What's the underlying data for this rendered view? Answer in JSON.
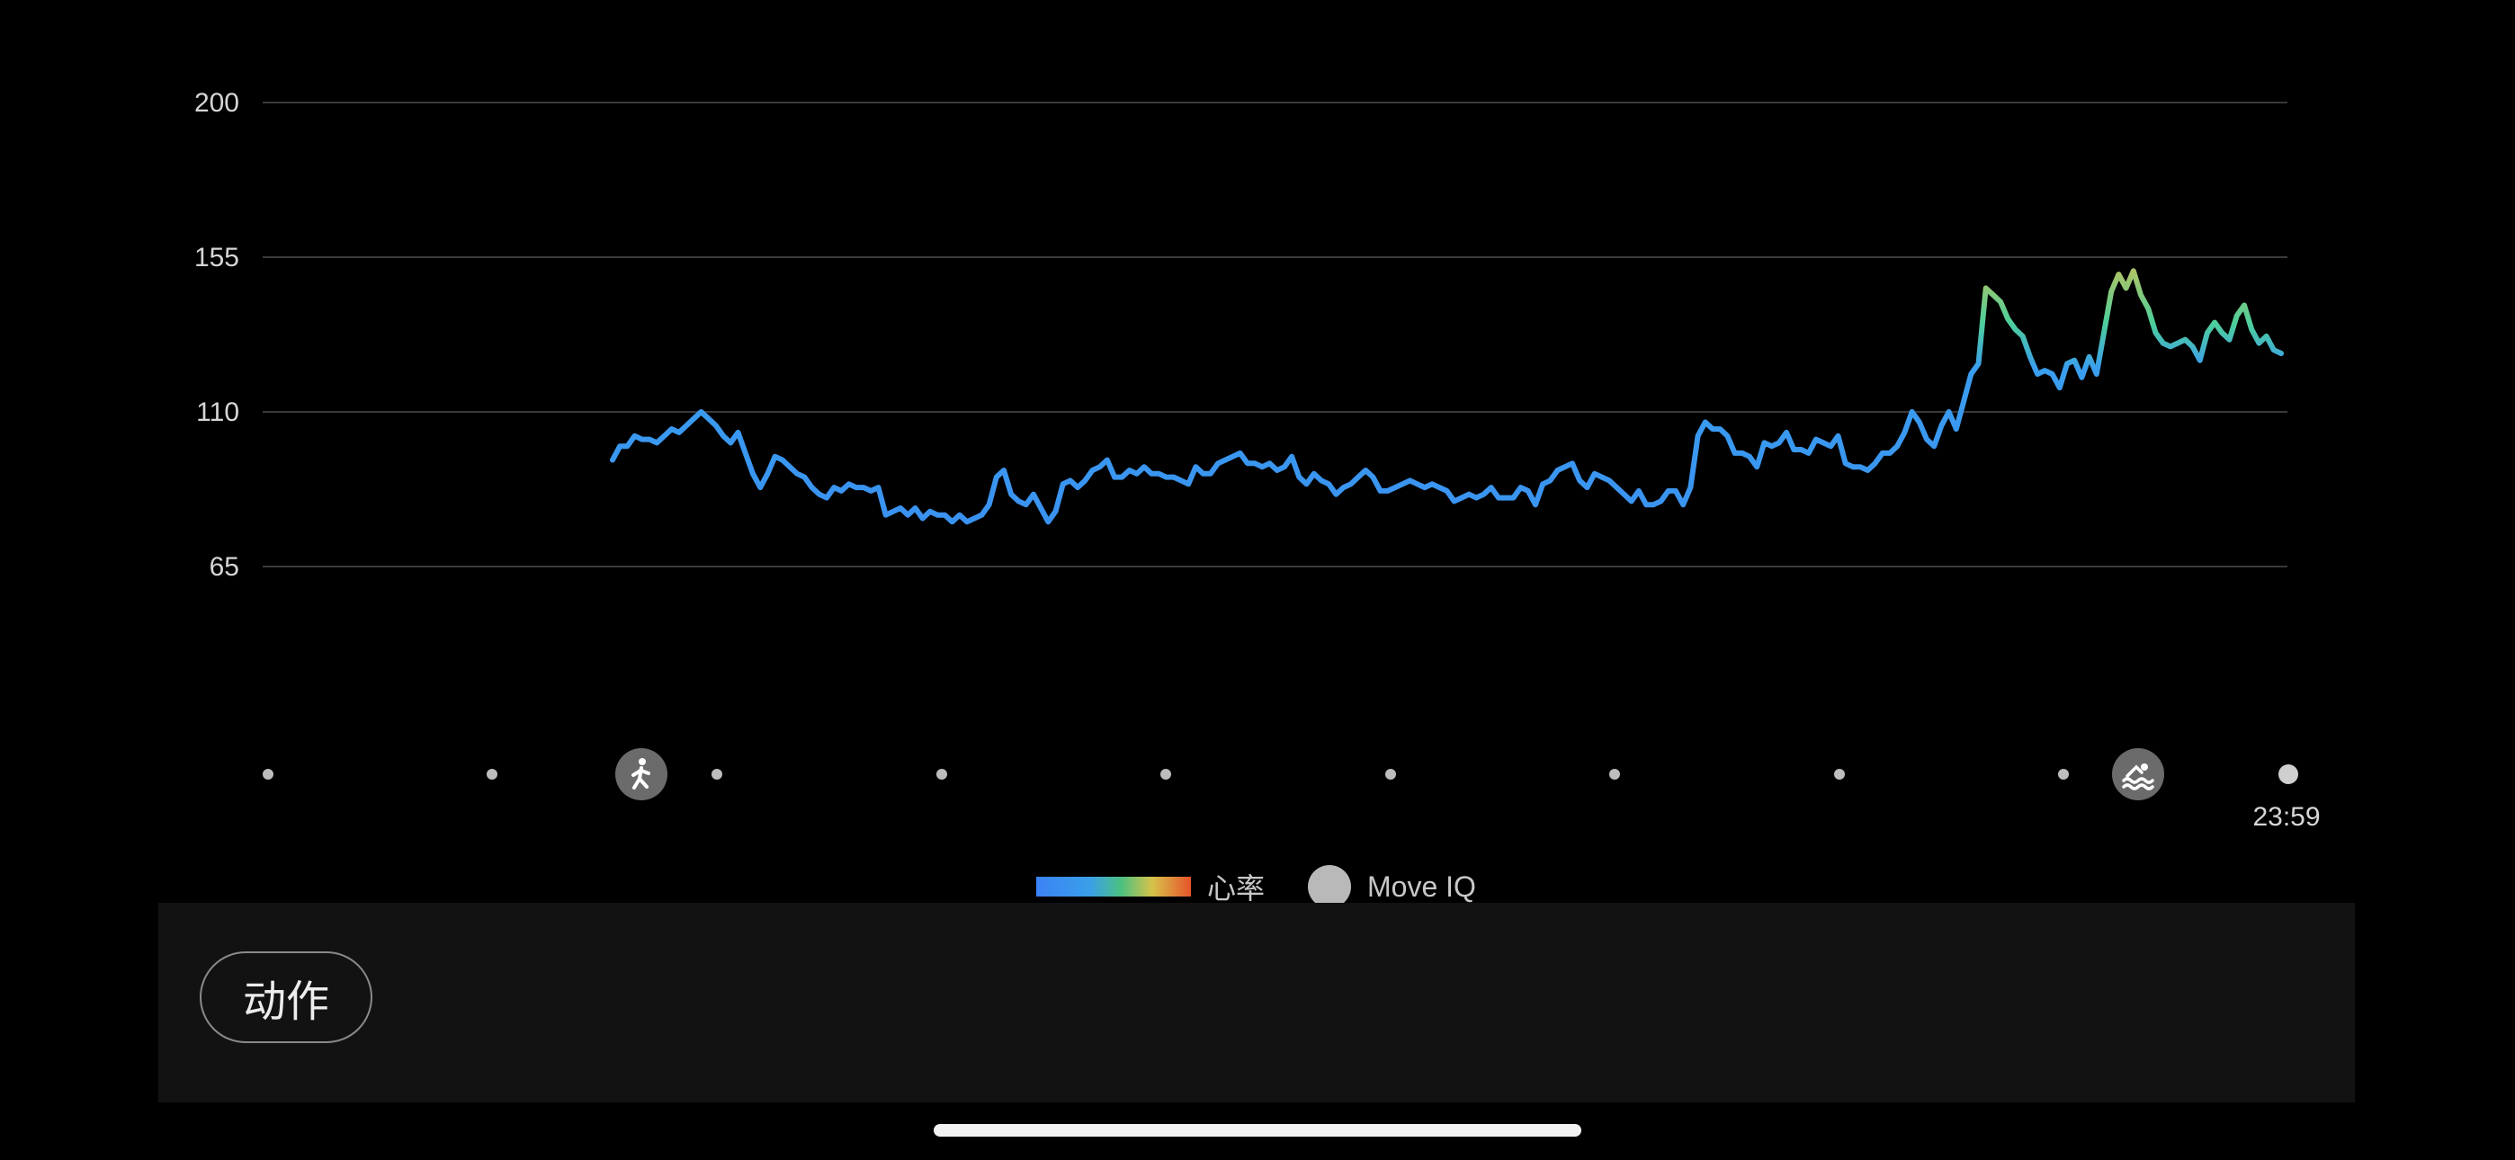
{
  "chart_data": {
    "type": "line",
    "series_label": "心率",
    "y_ticks": [
      200,
      155,
      110,
      65
    ],
    "ylim": [
      65,
      200
    ],
    "grid": true,
    "x_end_label": "23:59",
    "values": [
      96,
      100,
      100,
      103,
      102,
      102,
      101,
      103,
      105,
      104,
      106,
      108,
      110,
      108,
      106,
      103,
      101,
      104,
      98,
      92,
      88,
      92,
      97,
      96,
      94,
      92,
      91,
      88,
      86,
      85,
      88,
      87,
      89,
      88,
      88,
      87,
      88,
      80,
      81,
      82,
      80,
      82,
      79,
      81,
      80,
      80,
      78,
      80,
      78,
      79,
      80,
      83,
      91,
      93,
      86,
      84,
      83,
      86,
      82,
      78,
      81,
      89,
      90,
      88,
      90,
      93,
      94,
      96,
      91,
      91,
      93,
      92,
      94,
      92,
      92,
      91,
      91,
      90,
      89,
      94,
      92,
      92,
      95,
      96,
      97,
      98,
      95,
      95,
      94,
      95,
      93,
      94,
      97,
      91,
      89,
      92,
      90,
      89,
      86,
      88,
      89,
      91,
      93,
      91,
      87,
      87,
      88,
      89,
      90,
      89,
      88,
      89,
      88,
      87,
      84,
      85,
      86,
      85,
      86,
      88,
      85,
      85,
      85,
      88,
      87,
      83,
      89,
      90,
      93,
      94,
      95,
      90,
      88,
      92,
      91,
      90,
      88,
      86,
      84,
      87,
      83,
      83,
      84,
      87,
      87,
      83,
      88,
      103,
      107,
      105,
      105,
      103,
      98,
      98,
      97,
      94,
      101,
      100,
      101,
      104,
      99,
      99,
      98,
      102,
      101,
      100,
      103,
      95,
      94,
      94,
      93,
      95,
      98,
      98,
      100,
      104,
      110,
      107,
      102,
      100,
      106,
      110,
      105,
      113,
      121,
      124,
      146,
      144,
      142,
      137,
      134,
      132,
      126,
      121,
      122,
      121,
      117,
      124,
      125,
      120,
      126,
      121,
      133,
      145,
      150,
      146,
      151,
      144,
      140,
      133,
      130,
      129,
      130,
      131,
      129,
      125,
      133,
      136,
      133,
      131,
      138,
      141,
      134,
      130,
      132,
      128,
      127
    ],
    "series": [
      {
        "values_ref": "values"
      }
    ],
    "activity_markers": [
      "walk-icon",
      "swim-icon"
    ],
    "colors": {
      "low": "#3b8ff0",
      "mid": "#4dc9a0",
      "high": "#d9c24c",
      "max": "#e8532b"
    }
  },
  "legend": {
    "heart_rate_label": "心率",
    "move_iq_label": "Move IQ"
  },
  "actions": {
    "button_label": "动作"
  }
}
